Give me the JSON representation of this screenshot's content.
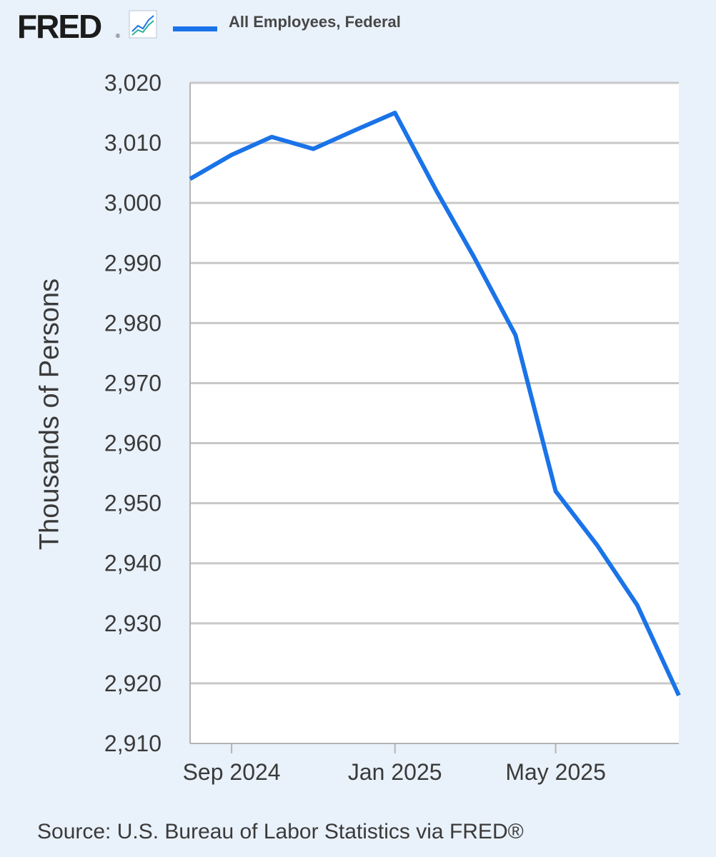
{
  "header": {
    "logo_text": "FRED",
    "logo_mark": "®",
    "logo_icon": "line-chart-icon",
    "legend_label": "All Employees, Federal",
    "legend_color": "#1a73e8"
  },
  "source": "Source: U.S. Bureau of Labor Statistics via FRED®",
  "chart_data": {
    "type": "line",
    "title": "",
    "xlabel": "",
    "ylabel": "Thousands of Persons",
    "ylim": [
      2910,
      3020
    ],
    "yticks": [
      2910,
      2920,
      2930,
      2940,
      2950,
      2960,
      2970,
      2980,
      2990,
      3000,
      3010,
      3020
    ],
    "ytick_labels": [
      "2,910",
      "2,920",
      "2,930",
      "2,940",
      "2,950",
      "2,960",
      "2,970",
      "2,980",
      "2,990",
      "3,000",
      "3,010",
      "3,020"
    ],
    "xlim": [
      "2024-08-01",
      "2025-08-01"
    ],
    "xticks": [
      "2024-09-01",
      "2025-01-01",
      "2025-05-01"
    ],
    "xtick_labels": [
      "Sep 2024",
      "Jan 2025",
      "May 2025"
    ],
    "grid": true,
    "legend": "top",
    "series": [
      {
        "name": "All Employees, Federal",
        "color": "#1a73e8",
        "x": [
          "2024-08-01",
          "2024-09-01",
          "2024-10-01",
          "2024-11-01",
          "2024-12-01",
          "2025-01-01",
          "2025-02-01",
          "2025-03-01",
          "2025-04-01",
          "2025-05-01",
          "2025-06-01",
          "2025-07-01",
          "2025-08-01"
        ],
        "values": [
          3004,
          3008,
          3011,
          3009,
          3012,
          3015,
          3002,
          2991,
          2978,
          2952,
          2943,
          2933,
          2918
        ]
      }
    ]
  }
}
